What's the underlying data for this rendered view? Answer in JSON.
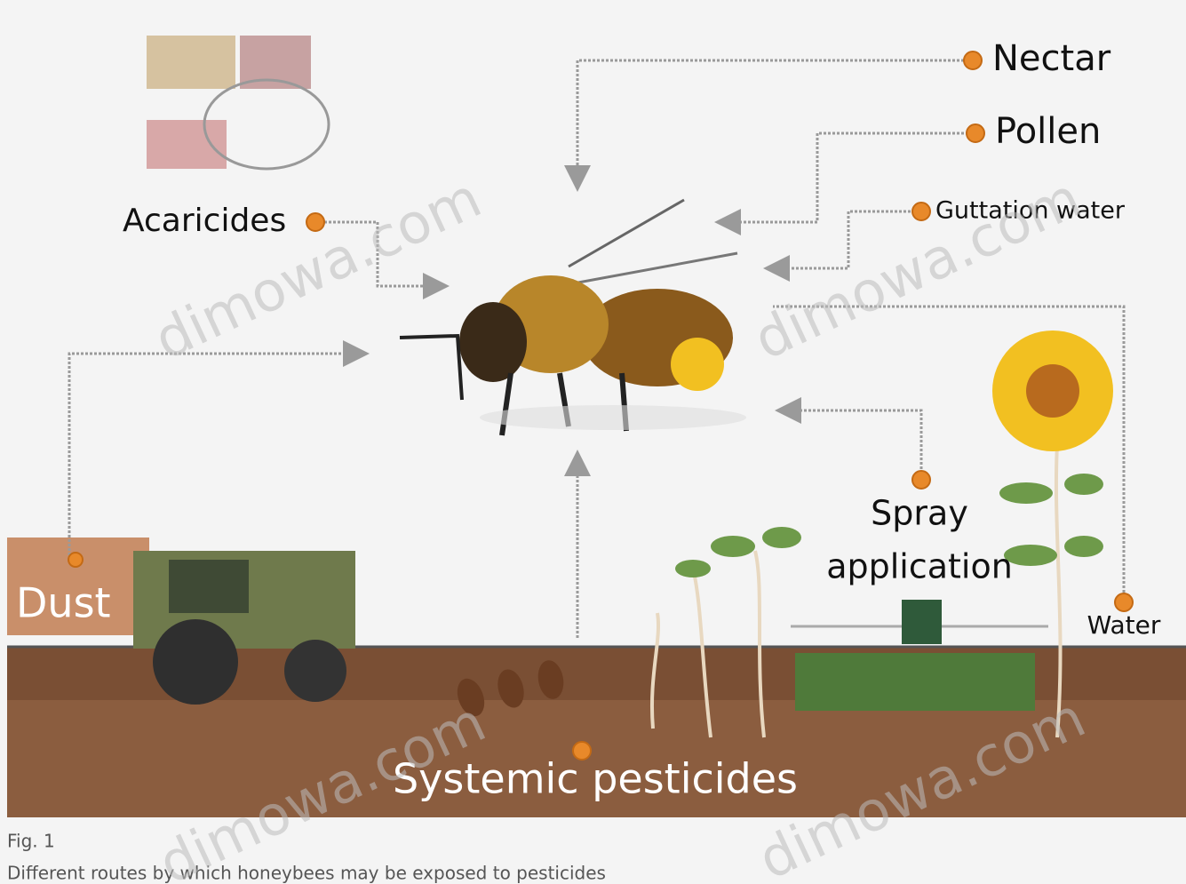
{
  "labels": {
    "nectar": "Nectar",
    "pollen": "Pollen",
    "guttation_water": "Guttation water",
    "acaricides": "Acaricides",
    "dust": "Dust",
    "spray_application": [
      "Spray",
      "application"
    ],
    "water": "Water",
    "systemic_pesticides": "Systemic pesticides"
  },
  "caption": {
    "figure": "Fig. 1",
    "text": "Different routes by which honeybees may be exposed to pesticides"
  },
  "watermark": "dimowa.com"
}
